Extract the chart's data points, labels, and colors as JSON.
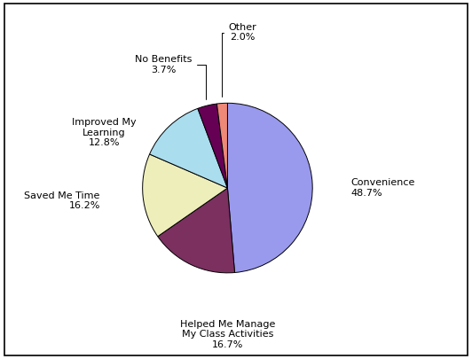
{
  "labels": [
    "Convenience",
    "Helped Me Manage\nMy Class Activities",
    "Saved Me Time",
    "Improved My\nLearning",
    "No Benefits",
    "Other"
  ],
  "values": [
    48.7,
    16.7,
    16.2,
    12.8,
    3.7,
    2.0
  ],
  "colors": [
    "#9999ee",
    "#7b3060",
    "#eeeebb",
    "#aaddee",
    "#660055",
    "#ee8877"
  ],
  "label_texts": [
    "Convenience\n48.7%",
    "Helped Me Manage\nMy Class Activities\n16.7%",
    "Saved Me Time\n16.2%",
    "Improved My\nLearning\n12.8%",
    "No Benefits\n3.7%",
    "Other\n2.0%"
  ],
  "background_color": "#ffffff",
  "figsize": [
    5.32,
    4.05
  ],
  "dpi": 100,
  "startangle": 90
}
